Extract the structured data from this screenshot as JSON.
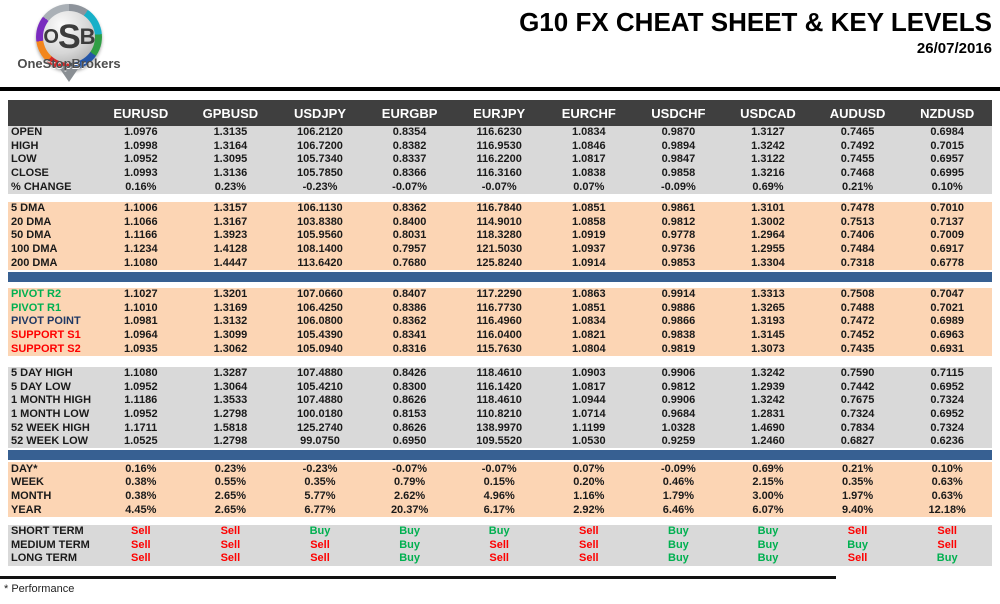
{
  "header": {
    "logo": {
      "acronym_o": "O",
      "acronym_s": "S",
      "acronym_b": "B",
      "brand": "OneStopBrokers"
    },
    "title": "G10 FX CHEAT SHEET & KEY LEVELS",
    "date": "26/07/2016"
  },
  "colors": {
    "header_row_bg": "#3f3f3f",
    "section_gray": "#d9d9d9",
    "section_peach": "#fcd5b4",
    "divider_blue": "#376092",
    "buy_green": "#00b050",
    "sell_red": "#fe0000",
    "pivot_navy": "#1f3864"
  },
  "table": {
    "columns": [
      "EURUSD",
      "GPBUSD",
      "USDJPY",
      "EURGBP",
      "EURJPY",
      "EURCHF",
      "USDCHF",
      "USDCAD",
      "AUDUSD",
      "NZDUSD"
    ],
    "sections": [
      {
        "id": "ohlc",
        "theme": "gray",
        "divider_after": false,
        "signals": false,
        "rows": [
          {
            "label": "OPEN",
            "values": [
              "1.0976",
              "1.3135",
              "106.2120",
              "0.8354",
              "116.6230",
              "1.0834",
              "0.9870",
              "1.3127",
              "0.7465",
              "0.6984"
            ]
          },
          {
            "label": "HIGH",
            "values": [
              "1.0998",
              "1.3164",
              "106.7200",
              "0.8382",
              "116.9530",
              "1.0846",
              "0.9894",
              "1.3242",
              "0.7492",
              "0.7015"
            ]
          },
          {
            "label": "LOW",
            "values": [
              "1.0952",
              "1.3095",
              "105.7340",
              "0.8337",
              "116.2200",
              "1.0817",
              "0.9847",
              "1.3122",
              "0.7455",
              "0.6957"
            ]
          },
          {
            "label": "CLOSE",
            "values": [
              "1.0993",
              "1.3136",
              "105.7850",
              "0.8366",
              "116.3160",
              "1.0838",
              "0.9858",
              "1.3216",
              "0.7468",
              "0.6995"
            ]
          },
          {
            "label": "% CHANGE",
            "values": [
              "0.16%",
              "0.23%",
              "-0.23%",
              "-0.07%",
              "-0.07%",
              "0.07%",
              "-0.09%",
              "0.69%",
              "0.21%",
              "0.10%"
            ]
          }
        ]
      },
      {
        "id": "dma",
        "theme": "peach",
        "divider_after": true,
        "signals": false,
        "rows": [
          {
            "label": "5 DMA",
            "values": [
              "1.1006",
              "1.3157",
              "106.1130",
              "0.8362",
              "116.7840",
              "1.0851",
              "0.9861",
              "1.3101",
              "0.7478",
              "0.7010"
            ]
          },
          {
            "label": "20 DMA",
            "values": [
              "1.1066",
              "1.3167",
              "103.8380",
              "0.8400",
              "114.9010",
              "1.0858",
              "0.9812",
              "1.3002",
              "0.7513",
              "0.7137"
            ]
          },
          {
            "label": "50 DMA",
            "values": [
              "1.1166",
              "1.3923",
              "105.9560",
              "0.8031",
              "118.3280",
              "1.0919",
              "0.9778",
              "1.2964",
              "0.7406",
              "0.7009"
            ]
          },
          {
            "label": "100 DMA",
            "values": [
              "1.1234",
              "1.4128",
              "108.1400",
              "0.7957",
              "121.5030",
              "1.0937",
              "0.9736",
              "1.2955",
              "0.7484",
              "0.6917"
            ]
          },
          {
            "label": "200 DMA",
            "values": [
              "1.1080",
              "1.4447",
              "113.6420",
              "0.7680",
              "125.8240",
              "1.0914",
              "0.9853",
              "1.3304",
              "0.7318",
              "0.6778"
            ]
          }
        ]
      },
      {
        "id": "pivots",
        "theme": "peach",
        "divider_after": false,
        "signals": false,
        "rows": [
          {
            "label": "PIVOT R2",
            "label_class": "lbl-green",
            "values": [
              "1.1027",
              "1.3201",
              "107.0660",
              "0.8407",
              "117.2290",
              "1.0863",
              "0.9914",
              "1.3313",
              "0.7508",
              "0.7047"
            ]
          },
          {
            "label": "PIVOT R1",
            "label_class": "lbl-green",
            "values": [
              "1.1010",
              "1.3169",
              "106.4250",
              "0.8386",
              "116.7730",
              "1.0851",
              "0.9886",
              "1.3265",
              "0.7488",
              "0.7021"
            ]
          },
          {
            "label": "PIVOT POINT",
            "label_class": "lbl-navy",
            "values": [
              "1.0981",
              "1.3132",
              "106.0800",
              "0.8362",
              "116.4960",
              "1.0834",
              "0.9866",
              "1.3193",
              "0.7472",
              "0.6989"
            ]
          },
          {
            "label": "SUPPORT S1",
            "label_class": "lbl-red",
            "values": [
              "1.0964",
              "1.3099",
              "105.4390",
              "0.8341",
              "116.0400",
              "1.0821",
              "0.9838",
              "1.3145",
              "0.7452",
              "0.6963"
            ]
          },
          {
            "label": "SUPPORT S2",
            "label_class": "lbl-red",
            "values": [
              "1.0935",
              "1.3062",
              "105.0940",
              "0.8316",
              "115.7630",
              "1.0804",
              "0.9819",
              "1.3073",
              "0.7435",
              "0.6931"
            ]
          }
        ]
      },
      {
        "id": "ranges",
        "theme": "gray",
        "divider_after": true,
        "signals": false,
        "rows": [
          {
            "label": "5 DAY HIGH",
            "values": [
              "1.1080",
              "1.3287",
              "107.4880",
              "0.8426",
              "118.4610",
              "1.0903",
              "0.9906",
              "1.3242",
              "0.7590",
              "0.7115"
            ]
          },
          {
            "label": "5 DAY LOW",
            "values": [
              "1.0952",
              "1.3064",
              "105.4210",
              "0.8300",
              "116.1420",
              "1.0817",
              "0.9812",
              "1.2939",
              "0.7442",
              "0.6952"
            ]
          },
          {
            "label": "1 MONTH HIGH",
            "values": [
              "1.1186",
              "1.3533",
              "107.4880",
              "0.8626",
              "118.4610",
              "1.0944",
              "0.9906",
              "1.3242",
              "0.7675",
              "0.7324"
            ]
          },
          {
            "label": "1 MONTH LOW",
            "values": [
              "1.0952",
              "1.2798",
              "100.0180",
              "0.8153",
              "110.8210",
              "1.0714",
              "0.9684",
              "1.2831",
              "0.7324",
              "0.6952"
            ]
          },
          {
            "label": "52 WEEK HIGH",
            "values": [
              "1.1711",
              "1.5818",
              "125.2740",
              "0.8626",
              "138.9970",
              "1.1199",
              "1.0328",
              "1.4690",
              "0.7834",
              "0.7324"
            ]
          },
          {
            "label": "52 WEEK LOW",
            "values": [
              "1.0525",
              "1.2798",
              "99.0750",
              "0.6950",
              "109.5520",
              "1.0530",
              "0.9259",
              "1.2460",
              "0.6827",
              "0.6236"
            ]
          }
        ]
      },
      {
        "id": "performance",
        "theme": "peach",
        "divider_after": false,
        "signals": false,
        "rows": [
          {
            "label": "DAY*",
            "values": [
              "0.16%",
              "0.23%",
              "-0.23%",
              "-0.07%",
              "-0.07%",
              "0.07%",
              "-0.09%",
              "0.69%",
              "0.21%",
              "0.10%"
            ]
          },
          {
            "label": "WEEK",
            "values": [
              "0.38%",
              "0.55%",
              "0.35%",
              "0.79%",
              "0.15%",
              "0.20%",
              "0.46%",
              "2.15%",
              "0.35%",
              "0.63%"
            ]
          },
          {
            "label": "MONTH",
            "values": [
              "0.38%",
              "2.65%",
              "5.77%",
              "2.62%",
              "4.96%",
              "1.16%",
              "1.79%",
              "3.00%",
              "1.97%",
              "0.63%"
            ]
          },
          {
            "label": "YEAR",
            "values": [
              "4.45%",
              "2.65%",
              "6.77%",
              "20.37%",
              "6.17%",
              "2.92%",
              "6.46%",
              "6.07%",
              "9.40%",
              "12.18%"
            ]
          }
        ]
      },
      {
        "id": "signals",
        "theme": "gray",
        "divider_after": false,
        "signals": true,
        "rows": [
          {
            "label": "SHORT TERM",
            "values": [
              "Sell",
              "Sell",
              "Buy",
              "Buy",
              "Buy",
              "Sell",
              "Buy",
              "Buy",
              "Sell",
              "Sell"
            ]
          },
          {
            "label": "MEDIUM TERM",
            "values": [
              "Sell",
              "Sell",
              "Sell",
              "Buy",
              "Sell",
              "Sell",
              "Buy",
              "Buy",
              "Buy",
              "Sell"
            ]
          },
          {
            "label": "LONG TERM",
            "values": [
              "Sell",
              "Sell",
              "Sell",
              "Buy",
              "Sell",
              "Sell",
              "Buy",
              "Buy",
              "Sell",
              "Buy"
            ]
          }
        ]
      }
    ]
  },
  "footer": {
    "note": "* Performance"
  }
}
